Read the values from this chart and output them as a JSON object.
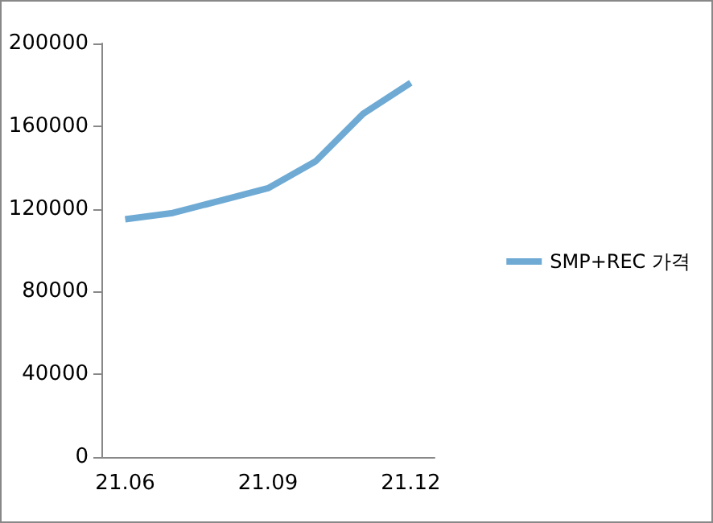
{
  "chart_data": {
    "type": "line",
    "categories": [
      "21.06",
      null,
      null,
      "21.09",
      null,
      null,
      "21.12"
    ],
    "series": [
      {
        "name": "SMP+REC 가격",
        "color": "#6eaad4",
        "values": [
          115000,
          118000,
          124000,
          130000,
          143000,
          166000,
          181000
        ]
      }
    ],
    "ylim": [
      0,
      200000
    ],
    "yticks": [
      0,
      40000,
      80000,
      120000,
      160000,
      200000
    ],
    "grid": false,
    "legend": "right",
    "marker": "none"
  }
}
